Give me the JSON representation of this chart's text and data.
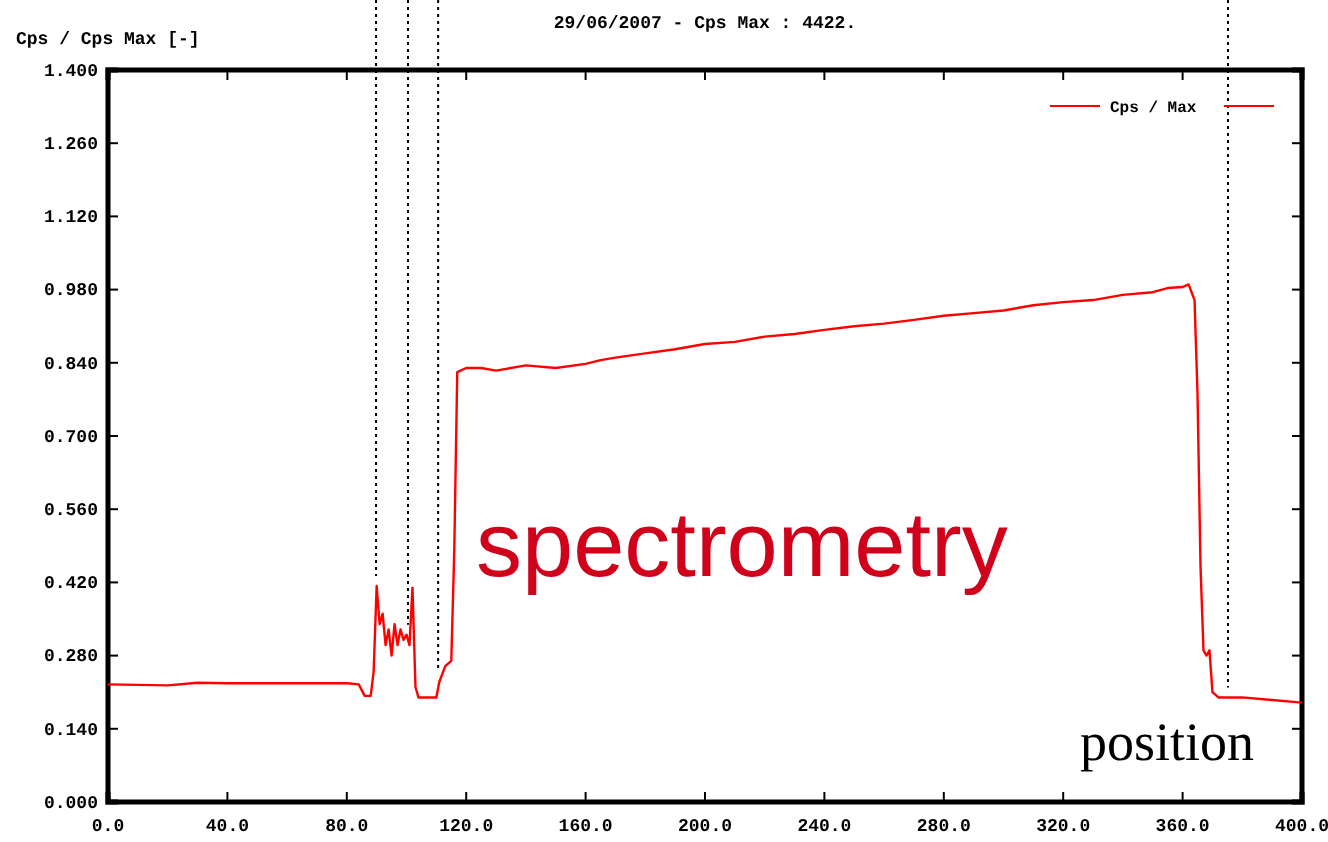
{
  "chart_data": {
    "type": "line",
    "title": "29/06/2007 - Cps Max : 4422.",
    "ylabel": "Cps / Cps Max [-]",
    "annotations": [
      "spectrometry",
      "position"
    ],
    "x": [
      0,
      10,
      20,
      30,
      40,
      60,
      80,
      84,
      86,
      88,
      89,
      90,
      91,
      92,
      93,
      94,
      95,
      96,
      97,
      98,
      99,
      100,
      101,
      102,
      103,
      104,
      107,
      110,
      111,
      113,
      115,
      116,
      117,
      120,
      125,
      130,
      140,
      150,
      160,
      165,
      170,
      180,
      190,
      200,
      210,
      220,
      230,
      240,
      250,
      260,
      270,
      280,
      290,
      300,
      310,
      320,
      330,
      340,
      350,
      355,
      360,
      362,
      364,
      365,
      366,
      367,
      368,
      369,
      370,
      372,
      380,
      390,
      400
    ],
    "series": [
      {
        "name": "Cps / Max",
        "color": "#ff0000",
        "values": [
          0.225,
          0.224,
          0.223,
          0.228,
          0.227,
          0.227,
          0.227,
          0.225,
          0.203,
          0.203,
          0.25,
          0.413,
          0.34,
          0.36,
          0.3,
          0.33,
          0.28,
          0.34,
          0.3,
          0.33,
          0.31,
          0.32,
          0.3,
          0.41,
          0.22,
          0.2,
          0.2,
          0.2,
          0.23,
          0.26,
          0.27,
          0.48,
          0.822,
          0.83,
          0.83,
          0.825,
          0.835,
          0.83,
          0.838,
          0.845,
          0.85,
          0.858,
          0.866,
          0.876,
          0.88,
          0.89,
          0.895,
          0.903,
          0.91,
          0.915,
          0.922,
          0.93,
          0.935,
          0.94,
          0.95,
          0.956,
          0.96,
          0.97,
          0.975,
          0.983,
          0.985,
          0.99,
          0.96,
          0.78,
          0.45,
          0.29,
          0.28,
          0.29,
          0.21,
          0.2,
          0.2,
          0.195,
          0.19
        ]
      }
    ],
    "xlim": [
      0,
      400
    ],
    "xticks": [
      {
        "value": 0,
        "label": "0.0"
      },
      {
        "value": 40,
        "label": "40.0"
      },
      {
        "value": 80,
        "label": "80.0"
      },
      {
        "value": 120,
        "label": "120.0"
      },
      {
        "value": 160,
        "label": "160.0"
      },
      {
        "value": 200,
        "label": "200.0"
      },
      {
        "value": 240,
        "label": "240.0"
      },
      {
        "value": 280,
        "label": "280.0"
      },
      {
        "value": 320,
        "label": "320.0"
      },
      {
        "value": 360,
        "label": "360.0"
      },
      {
        "value": 400,
        "label": "400.0"
      }
    ],
    "ylim": [
      0,
      1.4
    ],
    "yticks": [
      {
        "value": 0,
        "label": "0.000"
      },
      {
        "value": 0.14,
        "label": "0.140"
      },
      {
        "value": 0.28,
        "label": "0.280"
      },
      {
        "value": 0.42,
        "label": "0.420"
      },
      {
        "value": 0.56,
        "label": "0.560"
      },
      {
        "value": 0.7,
        "label": "0.700"
      },
      {
        "value": 0.84,
        "label": "0.840"
      },
      {
        "value": 0.98,
        "label": "0.980"
      },
      {
        "value": 1.12,
        "label": "1.120"
      },
      {
        "value": 1.26,
        "label": "1.260"
      },
      {
        "value": 1.4,
        "label": "1.400"
      }
    ],
    "ref_lines": [
      {
        "axis": "x",
        "value": 89.8,
        "line_style": "dotted"
      },
      {
        "axis": "x",
        "value": 100.5,
        "line_style": "dotted"
      },
      {
        "axis": "x",
        "value": 110.6,
        "line_style": "dotted"
      },
      {
        "axis": "x",
        "value": 375.2,
        "line_style": "dotted"
      }
    ],
    "legend": "top right",
    "grid": false,
    "line_style": "solid",
    "marker": "none"
  }
}
